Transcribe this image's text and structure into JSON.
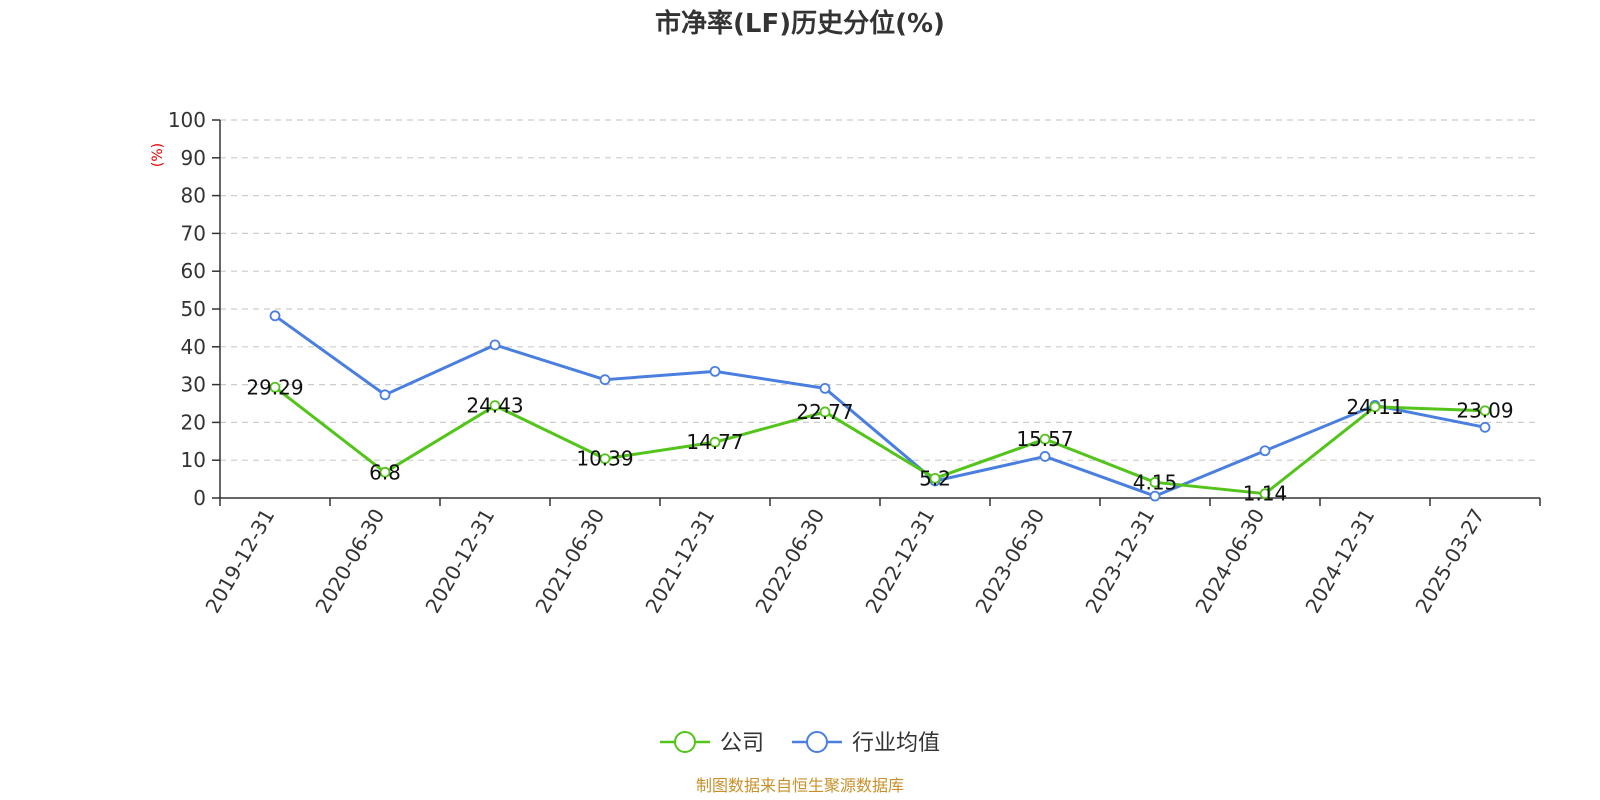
{
  "chart_data": {
    "type": "line",
    "title": "市净率(LF)历史分位(%)",
    "ylabel": "(%)",
    "ylim": [
      0,
      100
    ],
    "yticks": [
      0,
      10,
      20,
      30,
      40,
      50,
      60,
      70,
      80,
      90,
      100
    ],
    "grid": true,
    "categories": [
      "2019-12-31",
      "2020-06-30",
      "2020-12-31",
      "2021-06-30",
      "2021-12-31",
      "2022-06-30",
      "2022-12-31",
      "2023-06-30",
      "2023-12-31",
      "2024-06-30",
      "2024-12-31",
      "2025-03-27"
    ],
    "series": [
      {
        "name": "公司",
        "color": "#52c41a",
        "values": [
          29.29,
          6.8,
          24.43,
          10.39,
          14.77,
          22.77,
          5.2,
          15.57,
          4.15,
          1.14,
          24.11,
          23.09
        ],
        "show_labels": true
      },
      {
        "name": "行业均值",
        "color": "#4a7fe0",
        "values": [
          48.2,
          27.3,
          40.5,
          31.3,
          33.5,
          29.0,
          4.5,
          11.0,
          0.5,
          12.5,
          24.5,
          18.7
        ],
        "show_labels": false
      }
    ],
    "legend_position": "bottom-center",
    "source": "制图数据来自恒生聚源数据库",
    "source_color": "#c8902a",
    "ylabel_color": "#e60000"
  }
}
